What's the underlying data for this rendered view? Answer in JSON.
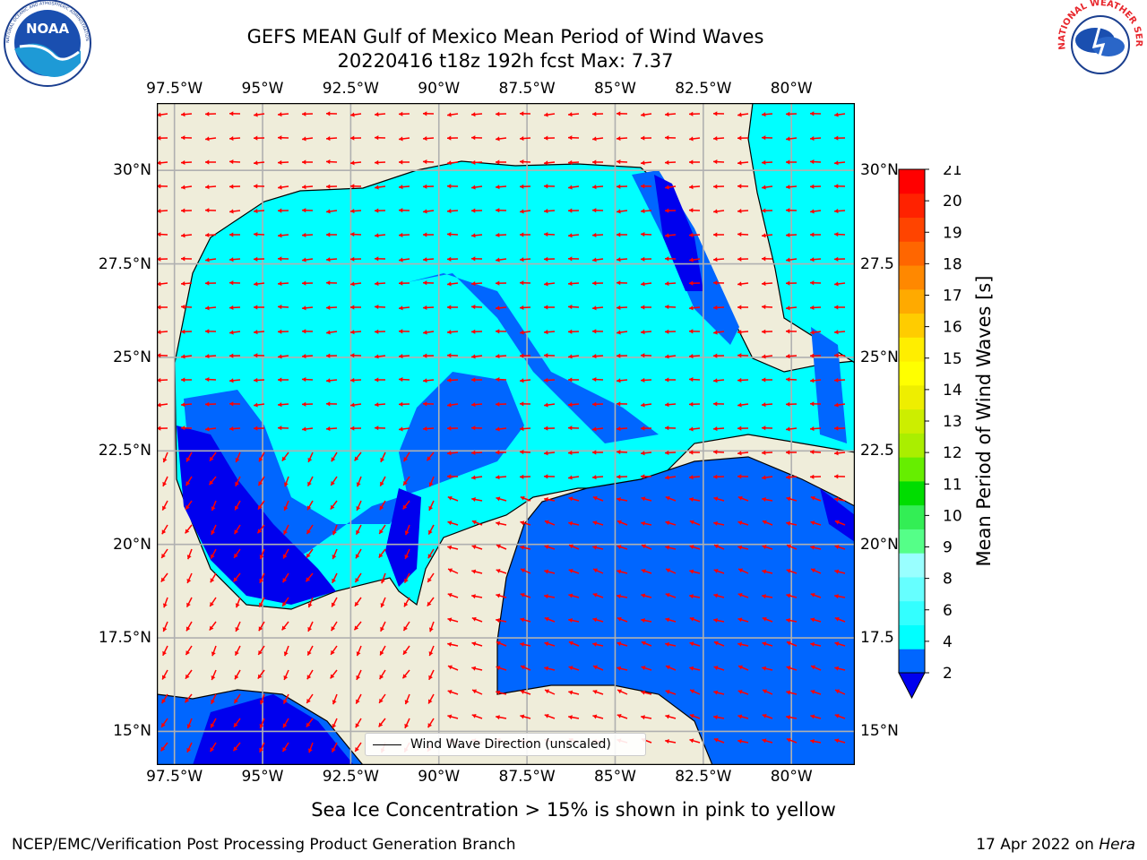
{
  "header": {
    "title_line1": "GEFS MEAN Gulf of Mexico Mean Period of Wind Waves",
    "title_line2": "20220416 t18z 192h fcst   Max: 7.37"
  },
  "logos": {
    "left": "NOAA",
    "left_ring_text": "NATIONAL OCEANIC AND ATMOSPHERIC ADMINISTRATION · U.S. DEPARTMENT OF COMMERCE",
    "right_ring_text": "NATIONAL WEATHER SERVICE"
  },
  "map": {
    "lon_labels": [
      "97.5°W",
      "95°W",
      "92.5°W",
      "90°W",
      "87.5°W",
      "85°W",
      "82.5°W",
      "80°W"
    ],
    "lat_labels_left": [
      "30°N",
      "27.5°N",
      "25°N",
      "22.5°N",
      "20°N",
      "17.5°N",
      "15°N"
    ],
    "lat_labels_right": [
      "30°N",
      "27.5",
      "25°N",
      "22.5",
      "20°N",
      "17.5",
      "15°N"
    ],
    "extent": {
      "lon_min": -98,
      "lon_max": -78.2,
      "lat_min": 14.1,
      "lat_max": 31.8
    },
    "legend_label": "Wind Wave Direction (unscaled)",
    "arrow_color": "#ff0000",
    "land_color": "#efedda",
    "grid_color": "#b0b0b0"
  },
  "colorbar": {
    "title": "Mean Period of Wind Waves [s]",
    "tick_labels": [
      "2",
      "4",
      "6",
      "8",
      "9",
      "10",
      "11",
      "12",
      "13",
      "14",
      "15",
      "16",
      "17",
      "18",
      "19",
      "20",
      "21"
    ],
    "colors": [
      "#0066ff",
      "#00ffff",
      "#33ffff",
      "#66ffff",
      "#99ffff",
      "#55ff88",
      "#33ee55",
      "#00dd00",
      "#66ee00",
      "#aaee00",
      "#ccee00",
      "#eeee00",
      "#ffff00",
      "#ffee00",
      "#ffcc00",
      "#ffaa00",
      "#ff8800",
      "#ff6600",
      "#ff4400",
      "#ff2200",
      "#ff0000"
    ],
    "under_color": "#0000ee"
  },
  "footer": {
    "note": "Sea Ice Concentration > 15% is shown in pink to yellow",
    "left": "NCEP/EMC/Verification Post Processing Product Generation Branch",
    "right_date": "17 Apr 2022 on",
    "right_host": "Hera"
  }
}
